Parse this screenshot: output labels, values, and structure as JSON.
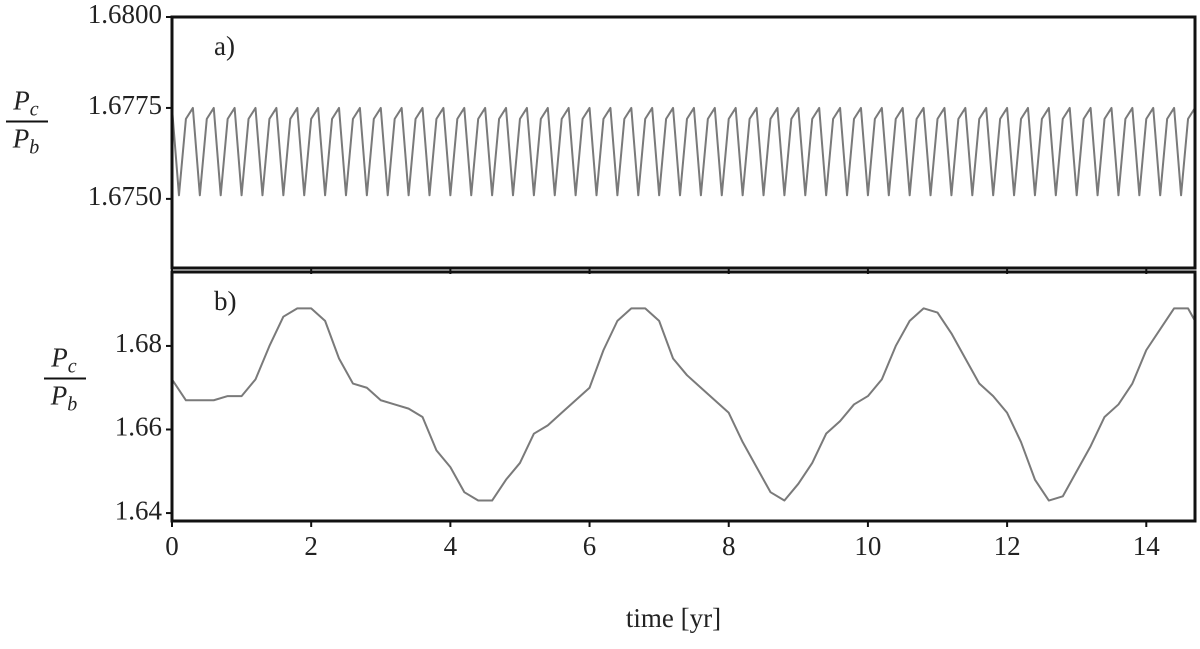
{
  "chart_data": [
    {
      "type": "line",
      "annotation": "a)",
      "ylabel": {
        "top": "P",
        "top_sub": "c",
        "bottom": "P",
        "bottom_sub": "b"
      },
      "xlim": [
        0,
        14.7
      ],
      "xticks": [
        0,
        2,
        4,
        6,
        8,
        10,
        12,
        14
      ],
      "show_xtick_labels": false,
      "ylim": [
        1.6731,
        1.68
      ],
      "yticks": [
        {
          "value": 1.675,
          "label": "1.6750"
        },
        {
          "value": 1.6775,
          "label": "1.6775"
        },
        {
          "value": 1.68,
          "label": "1.6800"
        }
      ],
      "color": "#7a7a7a",
      "x": [
        0,
        0.1,
        0.2,
        0.3,
        0.4,
        0.5,
        0.6,
        0.7,
        0.8,
        0.9,
        1,
        1.1,
        1.2,
        1.3,
        1.4,
        1.5,
        1.6,
        1.7,
        1.8,
        1.9,
        2,
        2.1,
        2.2,
        2.3,
        2.4,
        2.5,
        2.6,
        2.7,
        2.8,
        2.9,
        3,
        3.1,
        3.2,
        3.3,
        3.4,
        3.5,
        3.6,
        3.7,
        3.8,
        3.9,
        4,
        4.1,
        4.2,
        4.3,
        4.4,
        4.5,
        4.6,
        4.7,
        4.8,
        4.9,
        5,
        5.1,
        5.2,
        5.3,
        5.4,
        5.5,
        5.6,
        5.7,
        5.8,
        5.9,
        6,
        6.1,
        6.2,
        6.3,
        6.4,
        6.5,
        6.6,
        6.7,
        6.8,
        6.9,
        7,
        7.1,
        7.2,
        7.3,
        7.4,
        7.5,
        7.6,
        7.7,
        7.8,
        7.9,
        8,
        8.1,
        8.2,
        8.3,
        8.4,
        8.5,
        8.6,
        8.7,
        8.8,
        8.9,
        9,
        9.1,
        9.2,
        9.3,
        9.4,
        9.5,
        9.6,
        9.7,
        9.8,
        9.9,
        10,
        10.1,
        10.2,
        10.3,
        10.4,
        10.5,
        10.6,
        10.7,
        10.8,
        10.9,
        11,
        11.1,
        11.2,
        11.3,
        11.4,
        11.5,
        11.6,
        11.7,
        11.8,
        11.9,
        12,
        12.1,
        12.2,
        12.3,
        12.4,
        12.5,
        12.6,
        12.7,
        12.8,
        12.9,
        13,
        13.1,
        13.2,
        13.3,
        13.4,
        13.5,
        13.6,
        13.7,
        13.8,
        13.9,
        14,
        14.1,
        14.2,
        14.3,
        14.4,
        14.5,
        14.6,
        14.7
      ],
      "values": [
        1.6775,
        1.6751,
        1.6772,
        1.6775,
        1.6751,
        1.6772,
        1.6775,
        1.6751,
        1.6772,
        1.6775,
        1.6751,
        1.6772,
        1.6775,
        1.6751,
        1.6772,
        1.6775,
        1.6751,
        1.6772,
        1.6775,
        1.6751,
        1.6772,
        1.6775,
        1.6751,
        1.6772,
        1.6775,
        1.6751,
        1.6772,
        1.6775,
        1.6751,
        1.6772,
        1.6775,
        1.6751,
        1.6772,
        1.6775,
        1.6751,
        1.6772,
        1.6775,
        1.6751,
        1.6772,
        1.6775,
        1.6751,
        1.6772,
        1.6775,
        1.6751,
        1.6772,
        1.6775,
        1.6751,
        1.6772,
        1.6775,
        1.6751,
        1.6772,
        1.6775,
        1.6751,
        1.6772,
        1.6775,
        1.6751,
        1.6772,
        1.6775,
        1.6751,
        1.6772,
        1.6775,
        1.6751,
        1.6772,
        1.6775,
        1.6751,
        1.6772,
        1.6775,
        1.6751,
        1.6772,
        1.6775,
        1.6751,
        1.6772,
        1.6775,
        1.6751,
        1.6772,
        1.6775,
        1.6751,
        1.6772,
        1.6775,
        1.6751,
        1.6772,
        1.6775,
        1.6751,
        1.6772,
        1.6775,
        1.6751,
        1.6772,
        1.6775,
        1.6751,
        1.6772,
        1.6775,
        1.6751,
        1.6772,
        1.6775,
        1.6751,
        1.6772,
        1.6775,
        1.6751,
        1.6772,
        1.6775,
        1.6751,
        1.6772,
        1.6775,
        1.6751,
        1.6772,
        1.6775,
        1.6751,
        1.6772,
        1.6775,
        1.6751,
        1.6772,
        1.6775,
        1.6751,
        1.6772,
        1.6775,
        1.6751,
        1.6772,
        1.6775,
        1.6751,
        1.6772,
        1.6775,
        1.6751,
        1.6772,
        1.6775,
        1.6751,
        1.6772,
        1.6775,
        1.6751,
        1.6772,
        1.6775,
        1.6751,
        1.6772,
        1.6775,
        1.6751,
        1.6772,
        1.6775,
        1.6751,
        1.6772,
        1.6775,
        1.6751,
        1.6772,
        1.6775,
        1.6751,
        1.6772,
        1.6775,
        1.6751,
        1.6772,
        1.6775
      ]
    },
    {
      "type": "line",
      "annotation": "b)",
      "ylabel": {
        "top": "P",
        "top_sub": "c",
        "bottom": "P",
        "bottom_sub": "b"
      },
      "xlabel": "time [yr]",
      "xlim": [
        0,
        14.7
      ],
      "xticks": [
        0,
        2,
        4,
        6,
        8,
        10,
        12,
        14
      ],
      "show_xtick_labels": true,
      "ylim": [
        1.6381,
        1.6977
      ],
      "yticks": [
        1.64,
        1.66,
        1.68
      ],
      "color": "#7a7a7a",
      "x": [
        0,
        0.2,
        0.4,
        0.6,
        0.8,
        1,
        1.2,
        1.4,
        1.6,
        1.8,
        2,
        2.2,
        2.4,
        2.6,
        2.8,
        3,
        3.2,
        3.4,
        3.6,
        3.8,
        4,
        4.2,
        4.4,
        4.6,
        4.8,
        5,
        5.2,
        5.4,
        5.6,
        5.8,
        6,
        6.2,
        6.4,
        6.6,
        6.8,
        7,
        7.2,
        7.4,
        7.6,
        7.8,
        8,
        8.2,
        8.4,
        8.6,
        8.8,
        9,
        9.2,
        9.4,
        9.6,
        9.8,
        10,
        10.2,
        10.4,
        10.6,
        10.8,
        11,
        11.2,
        11.4,
        11.6,
        11.8,
        12,
        12.2,
        12.4,
        12.6,
        12.8,
        13,
        13.2,
        13.4,
        13.6,
        13.8,
        14,
        14.2,
        14.4,
        14.6,
        14.7
      ],
      "values": [
        1.672,
        1.667,
        1.667,
        1.667,
        1.668,
        1.668,
        1.672,
        1.68,
        1.687,
        1.689,
        1.689,
        1.686,
        1.677,
        1.671,
        1.67,
        1.667,
        1.666,
        1.665,
        1.663,
        1.655,
        1.651,
        1.645,
        1.643,
        1.643,
        1.648,
        1.652,
        1.659,
        1.661,
        1.664,
        1.667,
        1.67,
        1.679,
        1.686,
        1.689,
        1.689,
        1.686,
        1.677,
        1.673,
        1.67,
        1.667,
        1.664,
        1.657,
        1.651,
        1.645,
        1.643,
        1.647,
        1.652,
        1.659,
        1.662,
        1.666,
        1.668,
        1.672,
        1.68,
        1.686,
        1.689,
        1.688,
        1.683,
        1.677,
        1.671,
        1.668,
        1.664,
        1.657,
        1.648,
        1.643,
        1.644,
        1.65,
        1.656,
        1.663,
        1.666,
        1.671,
        1.679,
        1.684,
        1.689,
        1.689,
        1.686
      ]
    }
  ]
}
